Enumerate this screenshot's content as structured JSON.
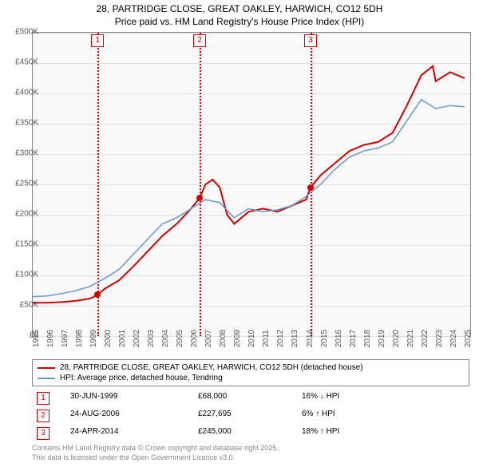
{
  "title_line1": "28, PARTRIDGE CLOSE, GREAT OAKLEY, HARWICH, CO12 5DH",
  "title_line2": "Price paid vs. HM Land Registry's House Price Index (HPI)",
  "chart": {
    "type": "line",
    "background_color": "#f9f9f9",
    "grid_color": "#e0e0e0",
    "border_color": "#888888",
    "x_years": [
      1995,
      1996,
      1997,
      1998,
      1999,
      2000,
      2001,
      2002,
      2003,
      2004,
      2005,
      2006,
      2007,
      2008,
      2009,
      2010,
      2011,
      2012,
      2013,
      2014,
      2015,
      2016,
      2017,
      2018,
      2019,
      2020,
      2021,
      2022,
      2023,
      2024,
      2025
    ],
    "x_min": 1995,
    "x_max": 2025.4,
    "y_ticks": [
      0,
      50000,
      100000,
      150000,
      200000,
      250000,
      300000,
      350000,
      400000,
      450000,
      500000
    ],
    "y_labels": [
      "£0",
      "£50K",
      "£100K",
      "£150K",
      "£200K",
      "£250K",
      "£300K",
      "£350K",
      "£400K",
      "£450K",
      "£500K"
    ],
    "y_min": 0,
    "y_max": 500000,
    "series": [
      {
        "name": "price_paid",
        "label": "28, PARTRIDGE CLOSE, GREAT OAKLEY, HARWICH, CO12 5DH (detached house)",
        "color": "#d40000",
        "line_width": 2,
        "data_x": [
          1995,
          1996,
          1997,
          1998,
          1999,
          1999.5,
          2000,
          2001,
          2002,
          2003,
          2004,
          2005,
          2006,
          2006.6,
          2007,
          2007.5,
          2008,
          2008.5,
          2009,
          2010,
          2011,
          2012,
          2013,
          2014,
          2014.3,
          2015,
          2016,
          2017,
          2018,
          2019,
          2020,
          2021,
          2022,
          2022.8,
          2023,
          2024,
          2025
        ],
        "data_y": [
          55000,
          55000,
          56000,
          58000,
          62000,
          68000,
          78000,
          92000,
          115000,
          140000,
          165000,
          185000,
          210000,
          227695,
          250000,
          258000,
          245000,
          200000,
          185000,
          205000,
          210000,
          205000,
          215000,
          225000,
          245000,
          265000,
          285000,
          305000,
          315000,
          320000,
          335000,
          380000,
          430000,
          445000,
          420000,
          435000,
          425000
        ]
      },
      {
        "name": "hpi",
        "label": "HPI: Average price, detached house, Tendring",
        "color": "#6699cc",
        "line_width": 1.5,
        "data_x": [
          1995,
          1996,
          1997,
          1998,
          1999,
          2000,
          2001,
          2002,
          2003,
          2004,
          2005,
          2006,
          2007,
          2008,
          2009,
          2010,
          2011,
          2012,
          2013,
          2014,
          2015,
          2016,
          2017,
          2018,
          2019,
          2020,
          2021,
          2022,
          2023,
          2024,
          2025
        ],
        "data_y": [
          65000,
          66000,
          70000,
          75000,
          82000,
          95000,
          110000,
          135000,
          160000,
          185000,
          195000,
          210000,
          225000,
          220000,
          195000,
          210000,
          205000,
          208000,
          215000,
          230000,
          250000,
          275000,
          295000,
          305000,
          310000,
          320000,
          355000,
          390000,
          375000,
          380000,
          378000
        ]
      }
    ],
    "markers": [
      {
        "num": "1",
        "year": 1999.5,
        "price": 68000
      },
      {
        "num": "2",
        "year": 2006.6,
        "price": 227695
      },
      {
        "num": "3",
        "year": 2014.3,
        "price": 245000
      }
    ]
  },
  "legend": {
    "s1_label": "28, PARTRIDGE CLOSE, GREAT OAKLEY, HARWICH, CO12 5DH (detached house)",
    "s2_label": "HPI: Average price, detached house, Tendring"
  },
  "sales": [
    {
      "num": "1",
      "date": "30-JUN-1999",
      "price": "£68,000",
      "diff": "16% ↓ HPI"
    },
    {
      "num": "2",
      "date": "24-AUG-2006",
      "price": "£227,695",
      "diff": "6% ↑ HPI"
    },
    {
      "num": "3",
      "date": "24-APR-2014",
      "price": "£245,000",
      "diff": "18% ↑ HPI"
    }
  ],
  "footer_line1": "Contains HM Land Registry data © Crown copyright and database right 2025.",
  "footer_line2": "This data is licensed under the Open Government Licence v3.0."
}
